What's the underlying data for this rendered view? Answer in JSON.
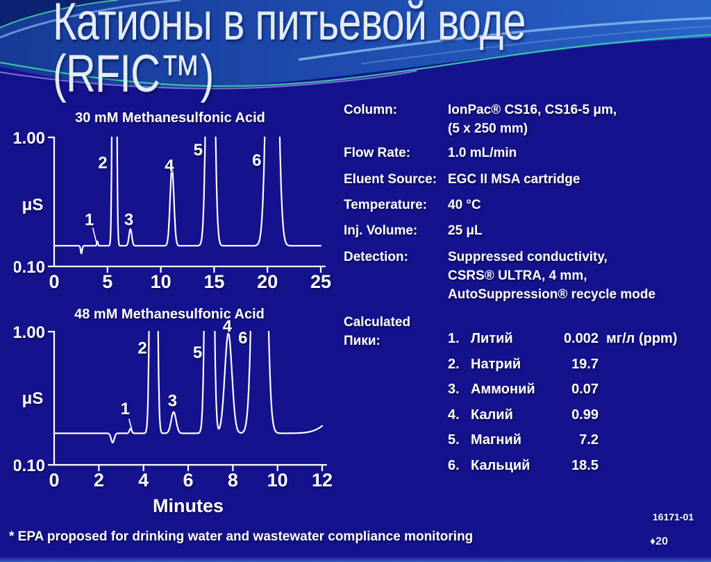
{
  "slide": {
    "title_line1": "Катионы в питьевой воде",
    "title_line2": "(RFIC™)",
    "footnote": "* EPA proposed for drinking water and wastewater compliance monitoring",
    "figure_code": "16171-01",
    "slide_number": "♦20"
  },
  "colors": {
    "background": "#15128d",
    "header_blue": "#2a63c8",
    "accent_teal": "#3cd0a6",
    "accent_light_blue": "#86b9ec",
    "accent_purple": "#9186dd",
    "trace": "#ffffff"
  },
  "method": {
    "rows": [
      {
        "label": "Column:",
        "value_lines": [
          "IonPac® CS16, CS16-5 μm,",
          "(5 x 250 mm)"
        ]
      },
      {
        "label": "Flow Rate:",
        "value_lines": [
          "1.0 mL/min"
        ]
      },
      {
        "label": "Eluent Source:",
        "value_lines": [
          "EGC II MSA cartridge"
        ]
      },
      {
        "label": "Temperature:",
        "value_lines": [
          "40 °C"
        ]
      },
      {
        "label": "Inj. Volume:",
        "value_lines": [
          "25 μL"
        ]
      },
      {
        "label": "Detection:",
        "value_lines": [
          "Suppressed conductivity,",
          "CSRS® ULTRA, 4 mm,",
          "AutoSuppression® recycle mode"
        ]
      }
    ],
    "peaks_label_lines": [
      "Calculated",
      "Пики:"
    ],
    "peaks": [
      {
        "num": "1.",
        "name": "Литий",
        "value": "0.002",
        "unit": "мг/л (ppm)"
      },
      {
        "num": "2.",
        "name": "Натрий",
        "value": "19.7",
        "unit": ""
      },
      {
        "num": "3.",
        "name": "Аммоний",
        "value": "0.07",
        "unit": ""
      },
      {
        "num": "4.",
        "name": "Калий",
        "value": "0.99",
        "unit": ""
      },
      {
        "num": "5.",
        "name": "Магний",
        "value": "7.2",
        "unit": ""
      },
      {
        "num": "6.",
        "name": "Кальций",
        "value": "18.5",
        "unit": ""
      }
    ]
  },
  "chart_data": [
    {
      "type": "line",
      "title": "30 mM Methanesulfonic Acid",
      "ylabel": "μS",
      "y_axis_top_label": "1.00",
      "y_axis_bottom_label": "0.10",
      "xlabel": "",
      "x_ticks": [
        0,
        5,
        10,
        15,
        20,
        25
      ],
      "x_max": 25,
      "ylim_display": [
        0.1,
        1.0
      ],
      "baseline_frac": 0.16,
      "peaks": [
        {
          "label": "1",
          "analyte": "Литий",
          "t": 4.05,
          "sigma": 0.05,
          "amp": 0.035,
          "clipped": false
        },
        {
          "label": "2",
          "analyte": "Натрий",
          "t": 5.65,
          "sigma": 0.12,
          "amp": 8,
          "clipped": true
        },
        {
          "label": "3",
          "analyte": "Аммоний",
          "t": 7.15,
          "sigma": 0.13,
          "amp": 0.13,
          "clipped": false
        },
        {
          "label": "4",
          "analyte": "Калий",
          "t": 11.05,
          "sigma": 0.18,
          "amp": 0.6,
          "clipped": false
        },
        {
          "label": "5",
          "analyte": "Магний",
          "t": 14.65,
          "sigma": 0.28,
          "amp": 4,
          "clipped": true
        },
        {
          "label": "6",
          "analyte": "Кальций",
          "t": 20.45,
          "sigma": 0.4,
          "amp": 4,
          "clipped": true
        }
      ],
      "dips": [
        {
          "t": 2.55,
          "sigma": 0.07,
          "amp": 0.06
        }
      ],
      "peak_labels": [
        {
          "text": "1",
          "x": 3.3,
          "y": 0.36,
          "leader": [
            3.62,
            0.3,
            3.95,
            0.19
          ]
        },
        {
          "text": "2",
          "x": 4.55,
          "y": 0.8
        },
        {
          "text": "3",
          "x": 7.0,
          "y": 0.36
        },
        {
          "text": "4",
          "x": 10.8,
          "y": 0.78
        },
        {
          "text": "5",
          "x": 13.5,
          "y": 0.9
        },
        {
          "text": "6",
          "x": 19.0,
          "y": 0.82
        }
      ]
    },
    {
      "type": "line",
      "title": "48 mM Methanesulfonic Acid",
      "ylabel": "μS",
      "y_axis_top_label": "1.00",
      "y_axis_bottom_label": "0.10",
      "xlabel": "Minutes",
      "x_ticks": [
        0,
        2,
        4,
        6,
        8,
        10,
        12
      ],
      "x_max": 12,
      "ylim_display": [
        0.1,
        1.0
      ],
      "baseline_frac": 0.237,
      "peaks": [
        {
          "label": "1",
          "analyte": "Литий",
          "t": 3.42,
          "sigma": 0.05,
          "amp": 0.035,
          "clipped": false
        },
        {
          "label": "2",
          "analyte": "Натрий",
          "t": 4.45,
          "sigma": 0.095,
          "amp": 8,
          "clipped": true
        },
        {
          "label": "3",
          "analyte": "Аммоний",
          "t": 5.35,
          "sigma": 0.11,
          "amp": 0.16,
          "clipped": false
        },
        {
          "label": "5",
          "analyte": "Магний",
          "t": 6.95,
          "sigma": 0.12,
          "amp": 6,
          "clipped": true
        },
        {
          "label": "4",
          "analyte": "Калий",
          "t": 7.8,
          "sigma": 0.16,
          "amp": 0.75,
          "clipped": false
        },
        {
          "label": "6",
          "analyte": "Кальций",
          "t": 9.2,
          "sigma": 0.21,
          "amp": 5,
          "clipped": true
        }
      ],
      "dips": [
        {
          "t": 2.62,
          "sigma": 0.07,
          "amp": 0.07
        }
      ],
      "baseline_drift": {
        "t": 13.3,
        "sigma": 0.75,
        "amp": 0.25
      },
      "peak_labels": [
        {
          "text": "1",
          "x": 3.18,
          "y": 0.42,
          "leader": [
            3.35,
            0.345,
            3.5,
            0.25
          ]
        },
        {
          "text": "2",
          "x": 3.95,
          "y": 0.875
        },
        {
          "text": "3",
          "x": 5.3,
          "y": 0.48
        },
        {
          "text": "5",
          "x": 6.42,
          "y": 0.84
        },
        {
          "text": "4",
          "x": 7.75,
          "y": 1.04
        },
        {
          "text": "6",
          "x": 8.45,
          "y": 0.95
        }
      ]
    }
  ]
}
